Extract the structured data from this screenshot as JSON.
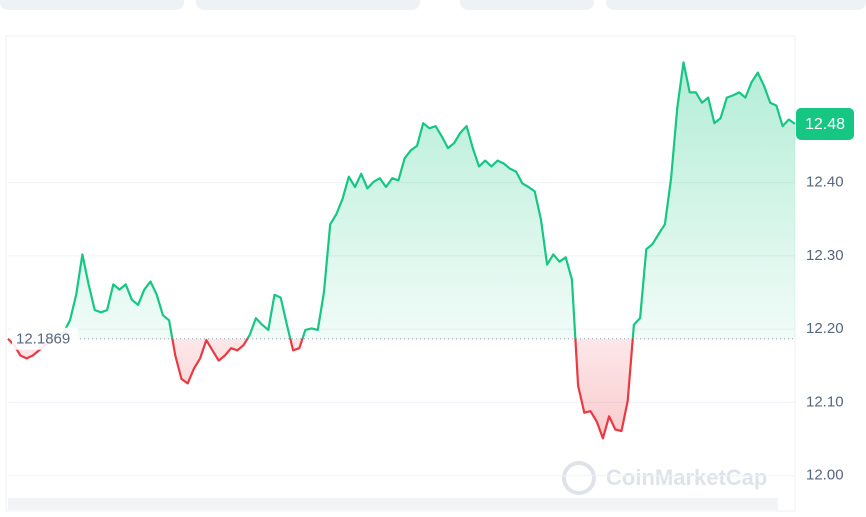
{
  "chart_data": {
    "type": "line",
    "values": [
      12.187,
      12.178,
      12.164,
      12.16,
      12.164,
      12.171,
      12.178,
      12.185,
      12.192,
      12.196,
      12.212,
      12.247,
      12.302,
      12.261,
      12.226,
      12.223,
      12.226,
      12.261,
      12.254,
      12.261,
      12.24,
      12.233,
      12.254,
      12.265,
      12.247,
      12.219,
      12.212,
      12.164,
      12.132,
      12.126,
      12.146,
      12.16,
      12.185,
      12.171,
      12.157,
      12.164,
      12.174,
      12.171,
      12.178,
      12.192,
      12.215,
      12.206,
      12.199,
      12.247,
      12.243,
      12.206,
      12.171,
      12.174,
      12.199,
      12.201,
      12.199,
      12.251,
      12.343,
      12.357,
      12.378,
      12.408,
      12.394,
      12.412,
      12.392,
      12.401,
      12.406,
      12.394,
      12.406,
      12.403,
      12.433,
      12.444,
      12.45,
      12.481,
      12.474,
      12.477,
      12.463,
      12.447,
      12.454,
      12.468,
      12.477,
      12.447,
      12.422,
      12.43,
      12.422,
      12.43,
      12.426,
      12.419,
      12.415,
      12.399,
      12.394,
      12.388,
      12.35,
      12.288,
      12.302,
      12.292,
      12.298,
      12.268,
      12.123,
      12.086,
      12.088,
      12.074,
      12.051,
      12.081,
      12.063,
      12.061,
      12.102,
      12.206,
      12.215,
      12.309,
      12.316,
      12.33,
      12.343,
      12.406,
      12.502,
      12.564,
      12.523,
      12.523,
      12.509,
      12.516,
      12.481,
      12.488,
      12.516,
      12.519,
      12.523,
      12.516,
      12.537,
      12.55,
      12.532,
      12.509,
      12.505,
      12.477,
      12.486,
      12.48
    ],
    "baseline": 12.1869,
    "last_price": 12.48,
    "up_color": "#16c784",
    "down_color": "#ea3943",
    "ylim": [
      11.96,
      12.6
    ],
    "yticks": [
      {
        "value": 12.0,
        "label": "12.00"
      },
      {
        "value": 12.1,
        "label": "12.10"
      },
      {
        "value": 12.2,
        "label": "12.20"
      },
      {
        "value": 12.3,
        "label": "12.30"
      },
      {
        "value": 12.4,
        "label": "12.40"
      }
    ],
    "grid": true,
    "watermark": "CoinMarketCap"
  }
}
